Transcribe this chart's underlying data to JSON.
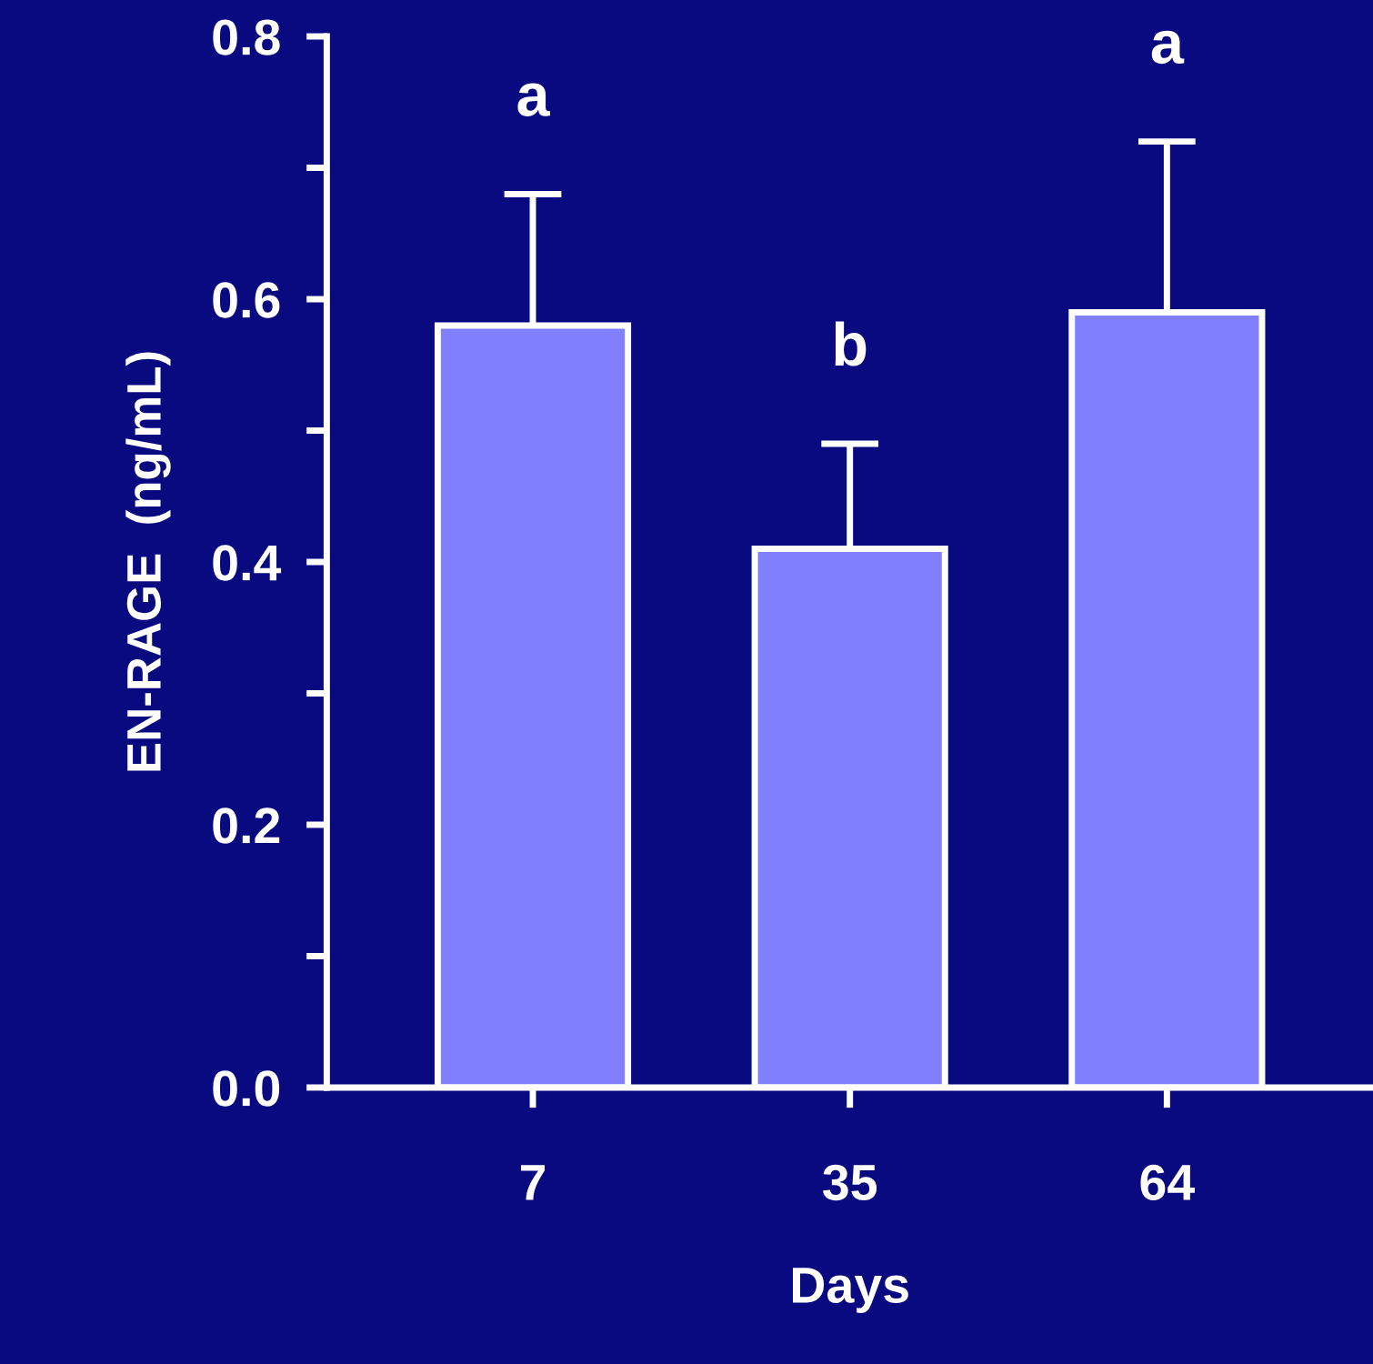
{
  "chart_data": {
    "type": "bar",
    "xlabel": "Days",
    "ylabel": "EN-RAGE  (ng/mL)",
    "categories": [
      "7",
      "35",
      "64"
    ],
    "values": [
      0.58,
      0.41,
      0.59
    ],
    "color": "#8080ff",
    "errors": [
      [
        0.58,
        0.68
      ],
      [
        0.41,
        0.49
      ],
      [
        0.59,
        0.72
      ]
    ],
    "ylim": [
      0,
      0.8
    ],
    "yticks": [
      {
        "value": 0,
        "label": "0.0"
      },
      {
        "value": 0.1,
        "label": null
      },
      {
        "value": 0.2,
        "label": "0.2"
      },
      {
        "value": 0.3,
        "label": null
      },
      {
        "value": 0.4,
        "label": "0.4"
      },
      {
        "value": 0.5,
        "label": null
      },
      {
        "value": 0.6,
        "label": "0.6"
      },
      {
        "value": 0.7,
        "label": null
      },
      {
        "value": 0.8,
        "label": "0.8"
      }
    ],
    "annotations": [
      "a",
      "b",
      "a"
    ],
    "grid": false,
    "legend": false
  }
}
